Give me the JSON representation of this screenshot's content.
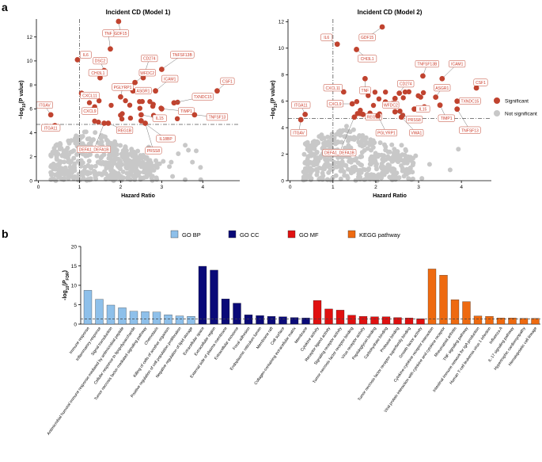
{
  "panel_labels": {
    "a": "a",
    "b": "b"
  },
  "colors": {
    "significant": "#c0432f",
    "not_significant": "#c8c8c8",
    "label_text": "#cc3a28",
    "go_bp": "#8ec0ea",
    "go_cc": "#0a0a78",
    "go_mf": "#e01010",
    "kegg": "#ee6a10"
  },
  "chart_data": [
    {
      "type": "scatter",
      "title": "Incident CD (Model 1)",
      "xlabel": "Hazard Ratio",
      "ylabel": "−log10(P value)",
      "xlim": [
        -0.05,
        4.9
      ],
      "ylim": [
        0,
        13.5
      ],
      "xticks": [
        "0",
        "1",
        "2",
        "3",
        "4"
      ],
      "yticks": [
        "0",
        "2",
        "4",
        "6",
        "8",
        "10",
        "12"
      ],
      "reference_lines": {
        "x": 1,
        "y": 4.7
      },
      "labels": [
        {
          "text": "GDF15",
          "x": 1.95,
          "y": 13.3,
          "lx": 2.0,
          "ly": 12.3
        },
        {
          "text": "TNF",
          "x": 1.75,
          "y": 11.0,
          "lx": 1.7,
          "ly": 12.3
        },
        {
          "text": "IL6",
          "x": 0.95,
          "y": 10.1,
          "lx": 1.15,
          "ly": 10.5
        },
        {
          "text": "DSC2",
          "x": 1.6,
          "y": 9.2,
          "lx": 1.5,
          "ly": 10.0
        },
        {
          "text": "CD274",
          "x": 2.55,
          "y": 8.6,
          "lx": 2.7,
          "ly": 10.2
        },
        {
          "text": "TNFSF13B",
          "x": 3.0,
          "y": 9.3,
          "lx": 3.5,
          "ly": 10.5
        },
        {
          "text": "CHI3L1",
          "x": 1.5,
          "y": 8.6,
          "lx": 1.45,
          "ly": 9.0
        },
        {
          "text": "WFDC2",
          "x": 2.35,
          "y": 8.2,
          "lx": 2.65,
          "ly": 9.0
        },
        {
          "text": "ICAM1",
          "x": 2.85,
          "y": 7.5,
          "lx": 3.2,
          "ly": 8.5
        },
        {
          "text": "CXCL11",
          "x": 1.05,
          "y": 7.3,
          "lx": 1.25,
          "ly": 7.1
        },
        {
          "text": "ASGR1",
          "x": 2.3,
          "y": 7.5,
          "lx": 2.55,
          "ly": 7.5
        },
        {
          "text": "CSF1",
          "x": 4.35,
          "y": 7.5,
          "lx": 4.6,
          "ly": 8.3
        },
        {
          "text": "TXNDC15",
          "x": 3.3,
          "y": 6.5,
          "lx": 4.0,
          "ly": 7.0
        },
        {
          "text": "PGLYRP1",
          "x": 2.0,
          "y": 7.0,
          "lx": 2.05,
          "ly": 7.8
        },
        {
          "text": "CXCL9",
          "x": 1.35,
          "y": 6.0,
          "lx": 1.25,
          "ly": 5.8
        },
        {
          "text": "IL15",
          "x": 2.5,
          "y": 5.5,
          "lx": 2.95,
          "ly": 5.2
        },
        {
          "text": "TIMP1",
          "x": 3.0,
          "y": 6.0,
          "lx": 3.6,
          "ly": 5.8
        },
        {
          "text": "ITGAV",
          "x": 0.3,
          "y": 5.5,
          "lx": 0.15,
          "ly": 6.3
        },
        {
          "text": "REG1B",
          "x": 1.7,
          "y": 4.8,
          "lx": 2.1,
          "ly": 4.2
        },
        {
          "text": "IL18BP",
          "x": 2.5,
          "y": 5.0,
          "lx": 3.1,
          "ly": 3.5
        },
        {
          "text": "TNFSF13",
          "x": 3.8,
          "y": 5.5,
          "lx": 4.35,
          "ly": 5.3
        },
        {
          "text": "ITGA11",
          "x": 0.4,
          "y": 4.6,
          "lx": 0.3,
          "ly": 4.4
        },
        {
          "text": "DEFA1_DEFA1B",
          "x": 1.6,
          "y": 4.8,
          "lx": 1.35,
          "ly": 2.6
        },
        {
          "text": "PRSS8",
          "x": 2.6,
          "y": 4.8,
          "lx": 2.8,
          "ly": 2.5
        }
      ]
    },
    {
      "type": "scatter",
      "title": "Incident CD (Model 2)",
      "xlabel": "Hazard Ratio",
      "ylabel": "−log10(P value)",
      "xlim": [
        -0.05,
        4.7
      ],
      "ylim": [
        0,
        12.2
      ],
      "xticks": [
        "0",
        "1",
        "2",
        "3",
        "4"
      ],
      "yticks": [
        "0",
        "2",
        "4",
        "6",
        "8",
        "10",
        "12"
      ],
      "reference_lines": {
        "x": 1,
        "y": 4.7
      },
      "labels": [
        {
          "text": "GDF15",
          "x": 2.15,
          "y": 11.6,
          "lx": 1.8,
          "ly": 10.8
        },
        {
          "text": "IL6",
          "x": 1.1,
          "y": 10.3,
          "lx": 0.85,
          "ly": 10.8
        },
        {
          "text": "CHI3L1",
          "x": 1.55,
          "y": 9.9,
          "lx": 1.8,
          "ly": 9.2
        },
        {
          "text": "TNFSF13B",
          "x": 3.1,
          "y": 7.9,
          "lx": 3.2,
          "ly": 8.8
        },
        {
          "text": "ICAM1",
          "x": 3.55,
          "y": 7.7,
          "lx": 3.9,
          "ly": 8.8
        },
        {
          "text": "CXCL11",
          "x": 1.25,
          "y": 6.7,
          "lx": 1.0,
          "ly": 7.0
        },
        {
          "text": "TNF",
          "x": 1.75,
          "y": 7.7,
          "lx": 1.75,
          "ly": 6.8
        },
        {
          "text": "CD274",
          "x": 2.55,
          "y": 6.6,
          "lx": 2.7,
          "ly": 7.3
        },
        {
          "text": "ASGR1",
          "x": 3.4,
          "y": 6.3,
          "lx": 3.55,
          "ly": 7.0
        },
        {
          "text": "CSF1",
          "x": 4.35,
          "y": 7.0,
          "lx": 4.45,
          "ly": 7.4
        },
        {
          "text": "CXCL9",
          "x": 1.45,
          "y": 5.8,
          "lx": 1.05,
          "ly": 5.8
        },
        {
          "text": "WFDC2",
          "x": 2.45,
          "y": 6.2,
          "lx": 2.35,
          "ly": 5.7
        },
        {
          "text": "TXNDC15",
          "x": 3.9,
          "y": 6.0,
          "lx": 4.2,
          "ly": 6.0
        },
        {
          "text": "ITGA11",
          "x": 0.35,
          "y": 5.0,
          "lx": 0.25,
          "ly": 5.7
        },
        {
          "text": "IL15",
          "x": 2.9,
          "y": 5.4,
          "lx": 3.1,
          "ly": 5.4
        },
        {
          "text": "TIMP1",
          "x": 3.5,
          "y": 5.7,
          "lx": 3.65,
          "ly": 4.7
        },
        {
          "text": "PRSS8",
          "x": 2.45,
          "y": 5.2,
          "lx": 2.9,
          "ly": 4.6
        },
        {
          "text": "REG1B",
          "x": 1.7,
          "y": 5.0,
          "lx": 1.95,
          "ly": 4.8
        },
        {
          "text": "ITGAV",
          "x": 0.25,
          "y": 4.6,
          "lx": 0.2,
          "ly": 3.6
        },
        {
          "text": "PGLYRP1",
          "x": 2.05,
          "y": 4.9,
          "lx": 2.25,
          "ly": 3.6
        },
        {
          "text": "VWA1",
          "x": 2.6,
          "y": 4.8,
          "lx": 2.95,
          "ly": 3.6
        },
        {
          "text": "TNFSF13",
          "x": 3.9,
          "y": 5.4,
          "lx": 4.2,
          "ly": 3.8
        },
        {
          "text": "DEFA1_DEFA1B",
          "x": 1.5,
          "y": 4.8,
          "lx": 1.15,
          "ly": 2.1
        }
      ],
      "legend": [
        {
          "label": "Significant",
          "color": "#c0432f"
        },
        {
          "label": "Not significant",
          "color": "#c8c8c8"
        }
      ]
    },
    {
      "type": "bar",
      "ylabel": "-log10(PFDR)",
      "ylim": [
        0,
        20
      ],
      "yticks": [
        "0",
        "5",
        "10",
        "15",
        "20"
      ],
      "reference_line": 1.3,
      "legend": [
        {
          "label": "GO BP",
          "group": "bp"
        },
        {
          "label": "GO CC",
          "group": "cc"
        },
        {
          "label": "GO MF",
          "group": "mf"
        },
        {
          "label": "KEGG pathway",
          "group": "kegg"
        }
      ],
      "categories": [
        "Immune response",
        "Inflammatory response",
        "Signal transduction",
        "Antimicrobial humoral immune response mediated by antimicrobial peptide",
        "Cellular response to lipopolysaccharide",
        "Tumor necrosis factor-mediated signaling pathway",
        "Chemotaxis",
        "Killing of cells of another organism",
        "Positive regulation of cell population proliferation",
        "Negative regulation of lipid storage",
        "Extracellular space",
        "Extracellular region",
        "External side of plasma membrane",
        "Extracellular exosome",
        "Focal adhesion",
        "Endoplasmic reticulum lumen",
        "Membrane raft",
        "Cell surface",
        "Collagen-containing extracellular matrix",
        "Membrane",
        "Cytokine activity",
        "Receptor ligand activity",
        "Signaling receptor activity",
        "Tumor necrosis factor receptor binding",
        "Virus receptor activity",
        "Peptidoglycan binding",
        "Carbohydrate binding",
        "Protease binding",
        "Tumor necrosis factor receptor superfamily binding",
        "Growth factor activity",
        "Cytokine-cytokine receptor interaction",
        "Viral protein interaction with cytokine and cytokine receptor",
        "Rheumatoid arthritis",
        "TNF signaling pathway",
        "Intestinal immune network for IgA production",
        "Human T-cell leukemia virus 1 infection",
        "Influenza A",
        "IL-17 signaling pathway",
        "Hypertrophic cardiomyopathy",
        "Hematopoietic cell lineage"
      ],
      "groups": [
        "bp",
        "bp",
        "bp",
        "bp",
        "bp",
        "bp",
        "bp",
        "bp",
        "bp",
        "bp",
        "cc",
        "cc",
        "cc",
        "cc",
        "cc",
        "cc",
        "cc",
        "cc",
        "cc",
        "cc",
        "mf",
        "mf",
        "mf",
        "mf",
        "mf",
        "mf",
        "mf",
        "mf",
        "mf",
        "mf",
        "kegg",
        "kegg",
        "kegg",
        "kegg",
        "kegg",
        "kegg",
        "kegg",
        "kegg",
        "kegg",
        "kegg"
      ],
      "values": [
        8.7,
        6.4,
        4.9,
        4.2,
        3.3,
        3.2,
        3.1,
        2.4,
        2.1,
        2.0,
        14.9,
        13.9,
        6.5,
        5.4,
        2.4,
        2.2,
        2.0,
        1.9,
        1.7,
        1.6,
        6.1,
        3.9,
        3.6,
        2.3,
        2.0,
        1.9,
        1.9,
        1.7,
        1.6,
        1.4,
        14.2,
        12.6,
        6.3,
        5.8,
        2.1,
        2.0,
        1.6,
        1.6,
        1.5,
        1.5
      ]
    }
  ]
}
